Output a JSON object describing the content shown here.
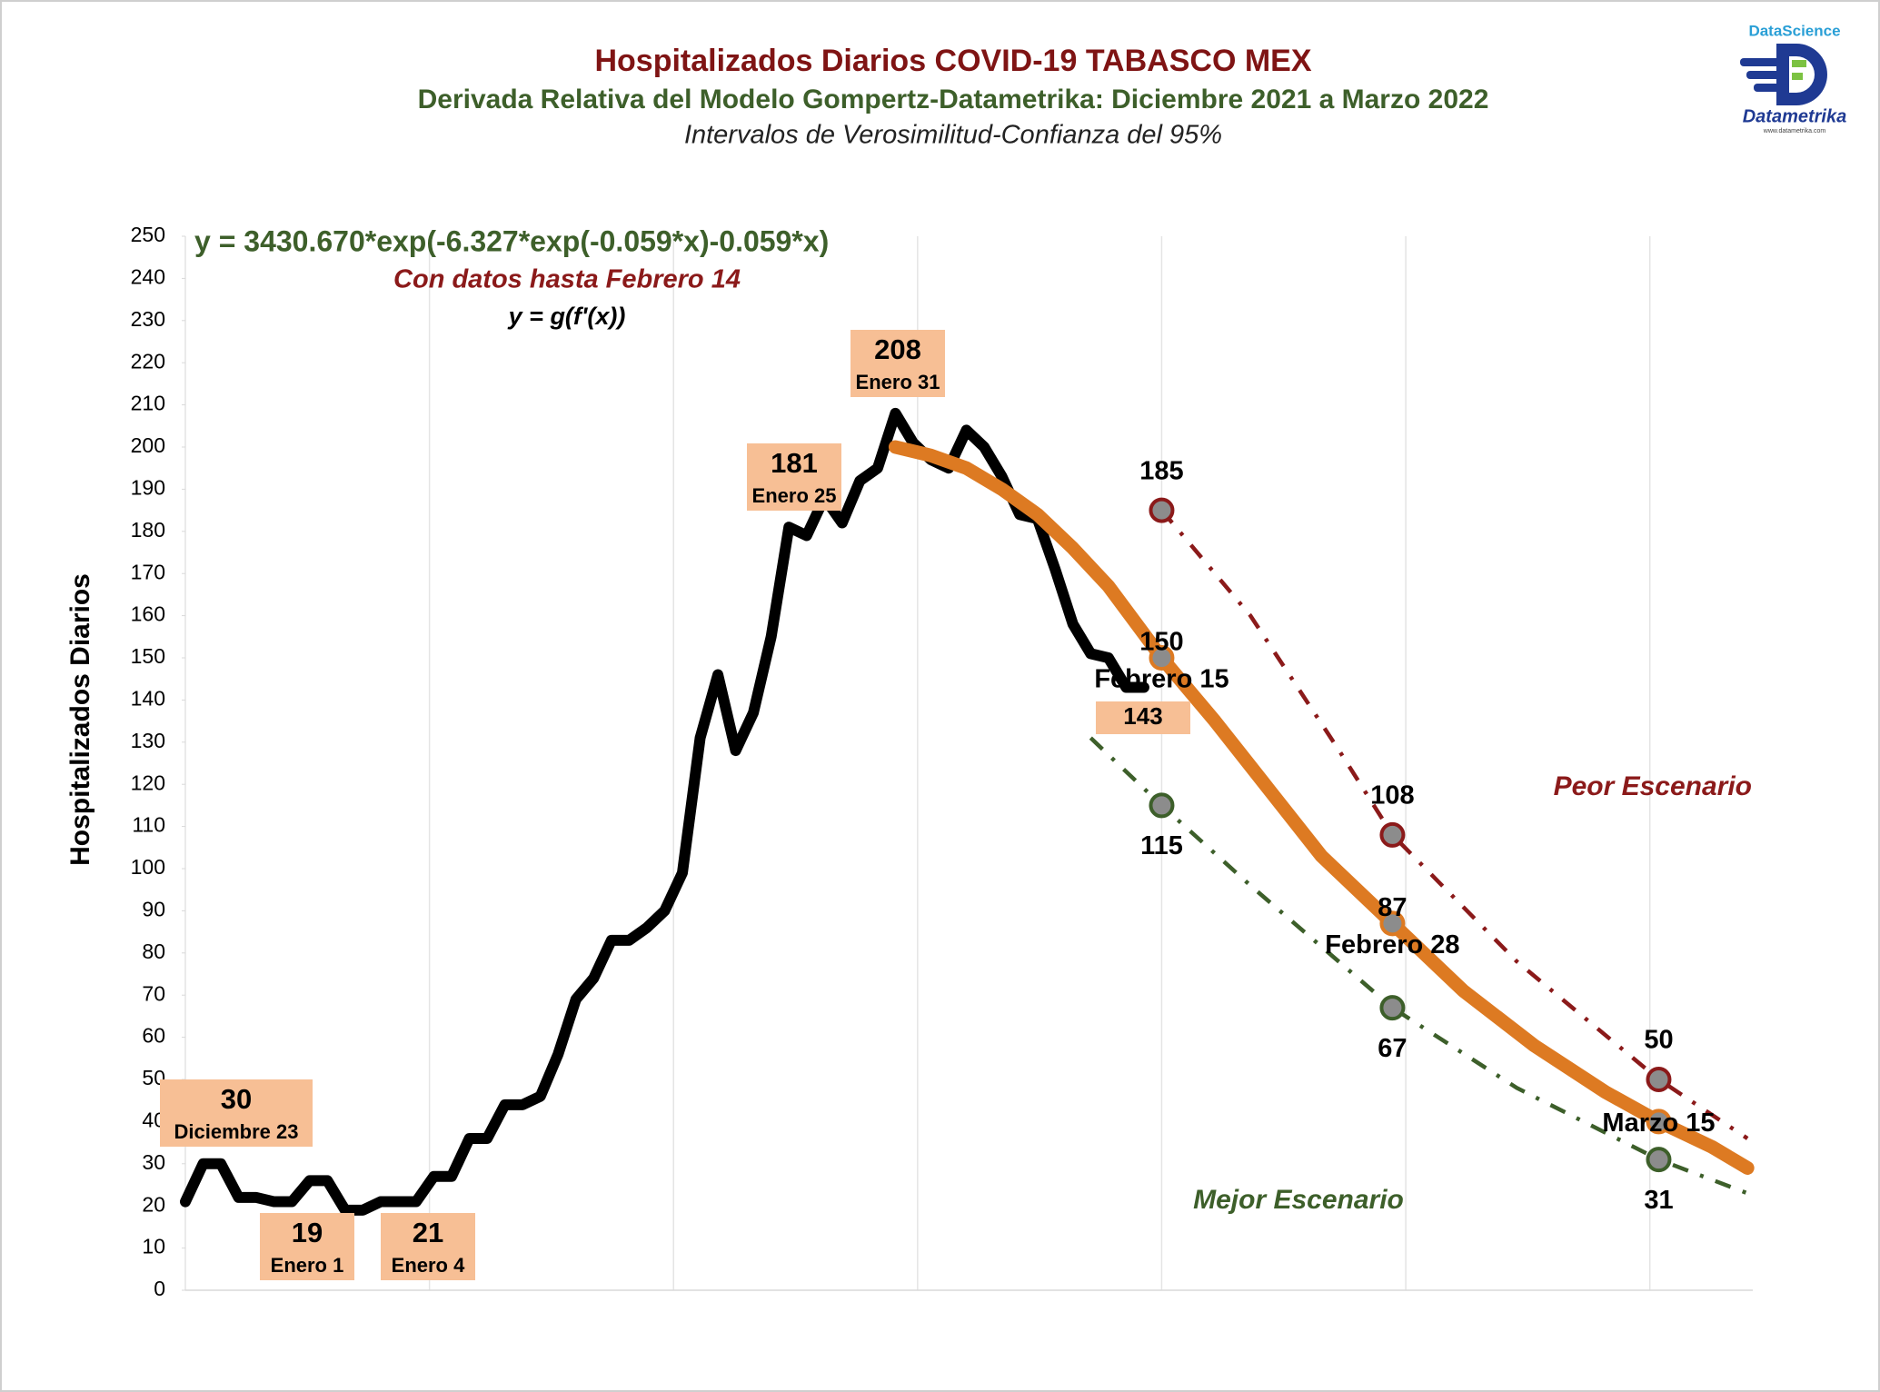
{
  "chart_data": {
    "type": "line",
    "title": "Hospitalizados Diarios COVID-19 TABASCO MEX",
    "subtitle": "Derivada Relativa del Modelo Gompertz-Datametrika: Diciembre 2021 a Marzo 2022",
    "caption": "Intervalos de Verosimilitud-Confianza del 95%",
    "equation": "y = 3430.670*exp(-6.327*exp(-0.059*x)-0.059*x)",
    "note": "Con datos hasta Febrero 14",
    "formula": "y = g(f'(x))",
    "ylabel": "Hospitalizados Diarios",
    "worst_label": "Peor Escenario",
    "best_label": "Mejor Escenario",
    "xlim": [
      0,
      88.3
    ],
    "xticks": [
      0,
      13.75,
      27.5,
      41.25,
      55,
      68.75,
      82.5
    ],
    "ylim": [
      0,
      250
    ],
    "yticks": [
      0,
      10,
      20,
      30,
      40,
      50,
      60,
      70,
      80,
      90,
      100,
      110,
      120,
      130,
      140,
      150,
      160,
      170,
      180,
      190,
      200,
      210,
      220,
      230,
      240,
      250
    ],
    "grid": "x",
    "series": [
      {
        "color": "#000000",
        "style": "solid",
        "x": [
          0,
          1,
          2,
          3,
          4,
          5,
          6,
          7,
          8,
          9,
          10,
          11,
          12,
          13,
          14,
          15,
          16,
          17,
          18,
          19,
          20,
          21,
          22,
          23,
          24,
          25,
          26,
          27,
          28,
          29,
          30,
          31,
          32,
          33,
          34,
          35,
          36,
          37,
          38,
          39,
          40,
          41,
          42,
          43,
          44,
          45,
          46,
          47,
          48,
          49,
          50,
          51,
          52,
          53,
          54
        ],
        "values": [
          21,
          30,
          30,
          22,
          22,
          21,
          21,
          26,
          26,
          19,
          19,
          21,
          21,
          21,
          27,
          27,
          36,
          36,
          44,
          44,
          46,
          56,
          69,
          74,
          83,
          83,
          86,
          90,
          99,
          131,
          146,
          128,
          137,
          155,
          181,
          179,
          188,
          182,
          192,
          195,
          208,
          201,
          197,
          195,
          204,
          200,
          193,
          184,
          183,
          171,
          158,
          151,
          150,
          143,
          143
        ]
      },
      {
        "color": "#dd7a22",
        "style": "solid",
        "x": [
          40,
          42,
          44,
          46,
          48,
          50,
          52,
          55,
          58,
          61,
          64,
          68,
          72,
          76,
          80,
          83,
          86,
          88
        ],
        "values": [
          200,
          198,
          195,
          190,
          184,
          176,
          167,
          150,
          135,
          119,
          103,
          87,
          71,
          58,
          47,
          40,
          34,
          29
        ]
      },
      {
        "color": "#8b1a1a",
        "style": "dashdot",
        "x": [
          55,
          60,
          65,
          68,
          75,
          83,
          88
        ],
        "values": [
          185,
          160,
          128,
          108,
          78,
          50,
          36
        ]
      },
      {
        "color": "#3d5f2a",
        "style": "dashdot",
        "x": [
          51,
          55,
          60,
          68,
          75,
          83,
          88
        ],
        "values": [
          131,
          115,
          96,
          67,
          48,
          31,
          23
        ]
      }
    ],
    "markers": [
      {
        "color": "#8b1a1a",
        "x": [
          55,
          68,
          83
        ],
        "values": [
          185,
          108,
          50
        ]
      },
      {
        "color": "#dd7a22",
        "x": [
          55,
          68,
          83
        ],
        "values": [
          150,
          87,
          40
        ],
        "value_labels": [
          "150",
          "87",
          null
        ],
        "labels": [
          "Febrero 15",
          "Febrero 28",
          "Marzo 15"
        ]
      },
      {
        "color": "#3d5f2a",
        "x": [
          55,
          68,
          83
        ],
        "values": [
          115,
          67,
          31
        ]
      }
    ],
    "callouts": [
      {
        "x": 1,
        "value": 30,
        "label": "Diciembre 23"
      },
      {
        "x": 9,
        "value": 19,
        "label": "Enero 1"
      },
      {
        "x": 12,
        "value": 21,
        "label": "Enero 4"
      },
      {
        "x": 34,
        "value": 181,
        "label": "Enero 25"
      },
      {
        "x": 40,
        "value": 208,
        "label": "Enero 31"
      },
      {
        "x": 54,
        "value": 143
      }
    ]
  },
  "logo": {
    "top": "DataScience",
    "name": "Datametrika",
    "url": "www.datametrika.com"
  }
}
